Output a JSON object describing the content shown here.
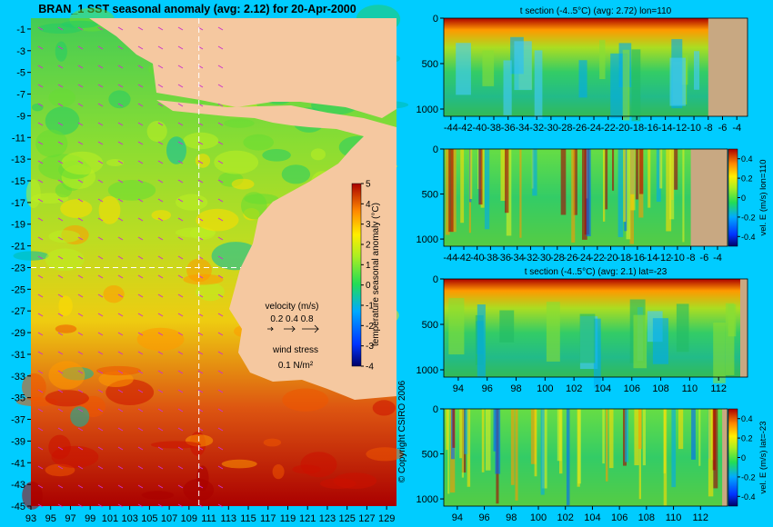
{
  "colors": {
    "background": "#00ccff",
    "land": "#f5c8a0",
    "land_section": "#c8a882",
    "guide": "#ffffff",
    "wind_arrow": "#cc33cc"
  },
  "copyright": "© Copyright CSIRO 2006",
  "chart_data": [
    {
      "type": "heatmap",
      "title": "BRAN_1 SST seasonal anomaly (avg: 2.12) for 20-Apr-2000",
      "x_ticks": [
        "93",
        "95",
        "97",
        "99",
        "101",
        "103",
        "105",
        "107",
        "109",
        "111",
        "113",
        "115",
        "117",
        "119",
        "121",
        "123",
        "125",
        "127",
        "129"
      ],
      "y_ticks": [
        "-1",
        "-3",
        "-5",
        "-7",
        "-9",
        "-11",
        "-13",
        "-15",
        "-17",
        "-19",
        "-21",
        "-23",
        "-25",
        "-27",
        "-29",
        "-31",
        "-33",
        "-35",
        "-37",
        "-39",
        "-41",
        "-43",
        "-45"
      ],
      "xlim": [
        93,
        130
      ],
      "ylim": [
        -45,
        0
      ],
      "colorbar": {
        "label": "temperature seasonal anomaly (°C)",
        "ticks": [
          "5",
          "4",
          "3",
          "2",
          "1",
          "0",
          "-1",
          "-2",
          "-3",
          "-4"
        ],
        "range": [
          -4,
          5
        ]
      },
      "guides": {
        "lon": 110,
        "lat": -23
      },
      "legend": {
        "velocity_title": "velocity (m/s)",
        "velocity_scale": "0.2 0.4 0.8",
        "wind_title": "wind stress",
        "wind_scale": "0.1 N/m²"
      }
    },
    {
      "type": "heatmap",
      "title": "t section (-4..5°C) (avg: 2.72) lon=110",
      "x_ticks": [
        "-44",
        "-42",
        "-40",
        "-38",
        "-36",
        "-34",
        "-32",
        "-30",
        "-28",
        "-26",
        "-24",
        "-22",
        "-20",
        "-18",
        "-16",
        "-14",
        "-12",
        "-10",
        "-8",
        "-6",
        "-4"
      ],
      "y_ticks": [
        "0",
        "500",
        "1000"
      ],
      "xlim": [
        -45,
        -2.5
      ],
      "ylim": [
        1080,
        0
      ],
      "land_from_x": -8
    },
    {
      "type": "heatmap",
      "title": "",
      "x_ticks": [
        "-44",
        "-42",
        "-40",
        "-38",
        "-36",
        "-34",
        "-32",
        "-30",
        "-28",
        "-26",
        "-24",
        "-22",
        "-20",
        "-18",
        "-16",
        "-14",
        "-12",
        "-10",
        "-8",
        "-6",
        "-4"
      ],
      "y_ticks": [
        "0",
        "500",
        "1000"
      ],
      "xlim": [
        -45,
        -2.5
      ],
      "ylim": [
        1080,
        0
      ],
      "land_from_x": -8,
      "colorbar": {
        "label": "vel. E (m/s) lon=110",
        "ticks": [
          "0.4",
          "0.2",
          "0",
          "-0.2",
          "-0.4"
        ],
        "range": [
          -0.5,
          0.5
        ]
      }
    },
    {
      "type": "heatmap",
      "title": "t section (-4..5°C) (avg: 2.1) lat=-23",
      "x_ticks": [
        "94",
        "96",
        "98",
        "100",
        "102",
        "104",
        "106",
        "108",
        "110",
        "112"
      ],
      "y_ticks": [
        "0",
        "500",
        "1000"
      ],
      "xlim": [
        93,
        114
      ],
      "ylim": [
        1080,
        0
      ],
      "land_from_x": 113.5
    },
    {
      "type": "heatmap",
      "title": "",
      "x_ticks": [
        "94",
        "96",
        "98",
        "100",
        "102",
        "104",
        "106",
        "108",
        "110",
        "112"
      ],
      "y_ticks": [
        "0",
        "500",
        "1000"
      ],
      "xlim": [
        93,
        114
      ],
      "ylim": [
        1080,
        0
      ],
      "land_from_x": 113.6,
      "colorbar": {
        "label": "vel. E (m/s) lat=-23",
        "ticks": [
          "0.4",
          "0.2",
          "0",
          "-0.2",
          "-0.4"
        ],
        "range": [
          -0.5,
          0.5
        ]
      }
    }
  ]
}
